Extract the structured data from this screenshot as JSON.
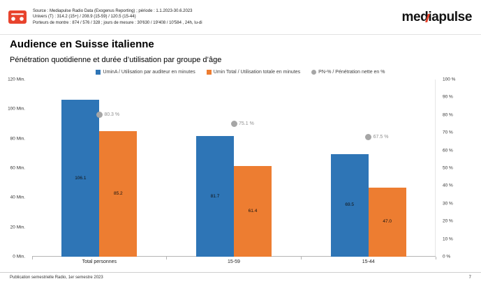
{
  "header": {
    "source_lines": [
      "Source :  Mediapulse Radio Data (Exogenus Reporting) ; période : 1.1.2023-30.6.2023",
      "Univers (T) : 314.2 (15+) / 208.9 (15-59) / 120.5 (15-44)",
      "Porteurs de montre :  874 / 576 / 328  ; jours de mesure : 30'630 / 19'408 / 10'584 , 24h, lu-di"
    ],
    "logo_text": "mediapulse",
    "accent_color": "#e8432d"
  },
  "page": {
    "title": "Audience en Suisse italienne",
    "subtitle": "Pénétration quotidienne et durée d’utilisation par groupe d’âge",
    "footer_left": "Publication semestrielle Radio, 1er semestre 2023",
    "footer_page": "7"
  },
  "chart_data": {
    "type": "bar",
    "title": "Audience en Suisse italienne",
    "categories": [
      "Total personnes",
      "15-59",
      "15-44"
    ],
    "series": [
      {
        "name": "UminA / Utilisation par auditeur en minutes",
        "kind": "bar",
        "axis": "left",
        "color": "#2E75B6",
        "values": [
          106.1,
          81.7,
          69.5
        ],
        "labels": [
          "106.1",
          "81.7",
          "69.5"
        ]
      },
      {
        "name": "Umin Total / Utilisation totale en minutes",
        "kind": "bar",
        "axis": "left",
        "color": "#ED7D31",
        "values": [
          85.2,
          61.4,
          47.0
        ],
        "labels": [
          "85.2",
          "61.4",
          "47.0"
        ]
      },
      {
        "name": "PN-% / Pénétration nette en %",
        "kind": "point",
        "axis": "right",
        "color": "#A6A6A6",
        "values": [
          80.3,
          75.1,
          67.5
        ],
        "labels": [
          "80.3 %",
          "75.1 %",
          "67.5 %"
        ]
      }
    ],
    "left_axis": {
      "min": 0,
      "max": 120,
      "tick_labels": [
        "120 Min.",
        "100 Min.",
        "80 Min.",
        "60 Min.",
        "40 Min.",
        "20 Min.",
        "0 Min."
      ]
    },
    "right_axis": {
      "min": 0,
      "max": 100,
      "tick_labels": [
        "100 %",
        "90 %",
        "80 %",
        "70 %",
        "60 %",
        "50 %",
        "40 %",
        "30 %",
        "20 %",
        "10 %",
        "0 %"
      ]
    },
    "grid": false,
    "legend_position": "top"
  }
}
